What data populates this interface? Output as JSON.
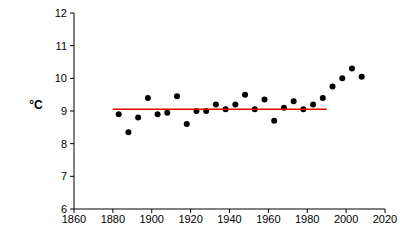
{
  "chart_data": {
    "type": "scatter",
    "y_label": "°C",
    "xlim": [
      1860,
      2020
    ],
    "xticks": [
      1860,
      1880,
      1900,
      1920,
      1940,
      1960,
      1980,
      2000,
      2020
    ],
    "ylim": [
      6,
      12
    ],
    "yticks": [
      6,
      7,
      8,
      9,
      10,
      11,
      12
    ],
    "grid": false,
    "series": [
      {
        "type": "scatter",
        "color": "#000000",
        "marker": "circle",
        "x": [
          1883,
          1888,
          1893,
          1898,
          1903,
          1908,
          1913,
          1918,
          1923,
          1928,
          1933,
          1938,
          1943,
          1948,
          1953,
          1958,
          1963,
          1968,
          1973,
          1978,
          1983,
          1988,
          1993,
          1998,
          2003,
          2008
        ],
        "values": [
          8.9,
          8.35,
          8.8,
          9.4,
          8.9,
          8.95,
          9.45,
          8.6,
          9.0,
          9.0,
          9.2,
          9.05,
          9.2,
          9.5,
          9.05,
          9.35,
          8.7,
          9.1,
          9.3,
          9.05,
          9.2,
          9.4,
          9.75,
          10.0,
          10.3,
          10.05
        ]
      },
      {
        "type": "line",
        "color": "#e00000",
        "line_style": "solid",
        "x": [
          1880,
          1990
        ],
        "values": [
          9.05,
          9.05
        ]
      }
    ]
  }
}
